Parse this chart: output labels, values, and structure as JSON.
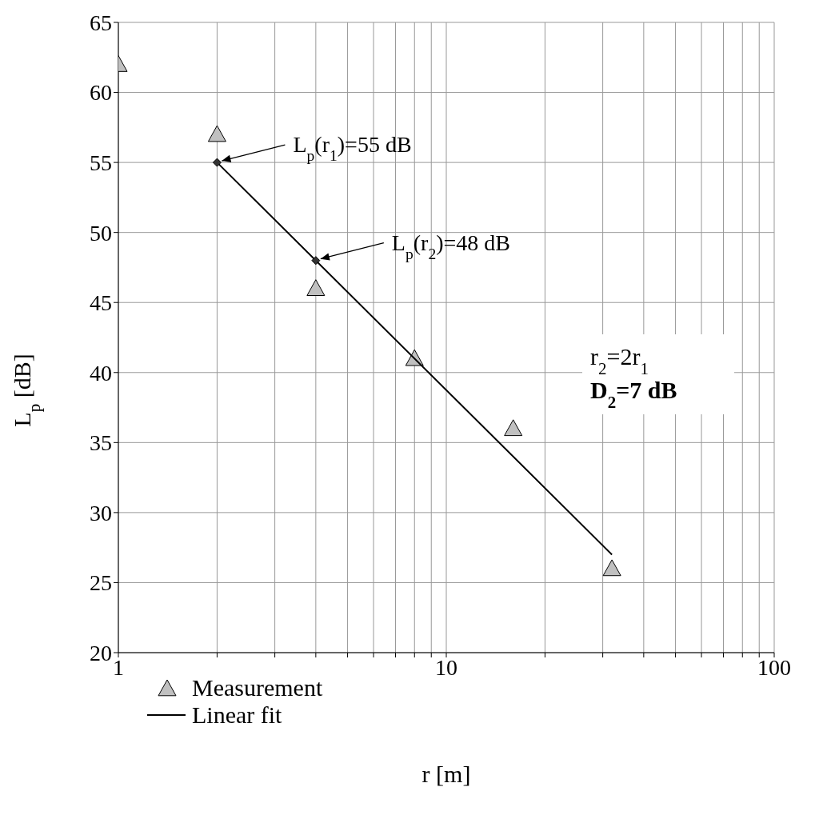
{
  "chart_data": {
    "type": "scatter",
    "xlabel": "r [m]",
    "ylabel": "L$_{p}$ [dB]",
    "log": "x",
    "xlim": [
      1,
      100
    ],
    "ylim": [
      20,
      65
    ],
    "xticks": [
      1,
      {
        "value": 2,
        "label": null
      },
      {
        "value": 3,
        "label": null
      },
      {
        "value": 4,
        "label": null
      },
      {
        "value": 5,
        "label": null
      },
      {
        "value": 6,
        "label": null
      },
      {
        "value": 7,
        "label": null
      },
      {
        "value": 8,
        "label": null
      },
      {
        "value": 9,
        "label": null
      },
      10,
      {
        "value": 20,
        "label": null
      },
      {
        "value": 30,
        "label": null
      },
      {
        "value": 40,
        "label": null
      },
      {
        "value": 50,
        "label": null
      },
      {
        "value": 60,
        "label": null
      },
      {
        "value": 70,
        "label": null
      },
      {
        "value": 80,
        "label": null
      },
      {
        "value": 90,
        "label": null
      },
      100
    ],
    "yticks": [
      20,
      25,
      30,
      35,
      40,
      45,
      50,
      55,
      60,
      65
    ],
    "grid": true,
    "legend": "bottom left",
    "series": [
      {
        "name": "Measurement",
        "type": "scatter",
        "marker": "triangle",
        "color": "#c0c0c0",
        "x": [
          1,
          2,
          4,
          8,
          16,
          32
        ],
        "values": [
          62,
          57,
          46,
          41,
          36,
          26
        ]
      },
      {
        "name": "Linear fit",
        "type": "line",
        "marker": "none",
        "line_style": "solid",
        "color": "#000000",
        "x": [
          2,
          32
        ],
        "values": [
          55,
          27
        ]
      },
      {
        "type": "scatter",
        "marker": "diamond",
        "color": "#333333",
        "x": [
          2,
          4
        ],
        "values": [
          55,
          48
        ]
      }
    ],
    "annotations": [
      {
        "text": "L$_{p}$(r$_{1}$)=55 dB",
        "x": 2,
        "y": 55
      },
      {
        "text": "L$_{p}$(r$_{2}$)=48 dB",
        "x": 4,
        "y": 48
      },
      "r$_{2}$=2r$_{1}$",
      "D$_{2}$=7 dB"
    ]
  }
}
